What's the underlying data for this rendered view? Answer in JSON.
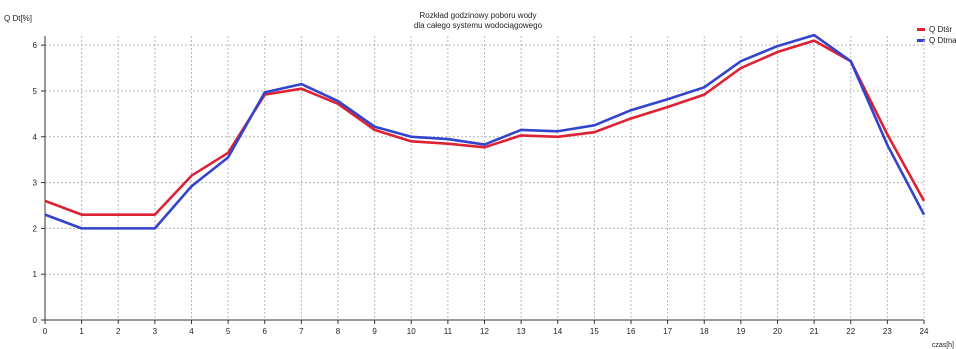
{
  "chart_data": {
    "type": "line",
    "title": "Rozkład godzinowy poboru wody",
    "subtitle": "dla całego systemu wodociągowego",
    "ylabel": "Q Dt[%]",
    "xlabel": "czas[h]",
    "x": [
      0,
      1,
      2,
      3,
      4,
      5,
      6,
      7,
      8,
      9,
      10,
      11,
      12,
      13,
      14,
      15,
      16,
      17,
      18,
      19,
      20,
      21,
      22,
      23,
      24
    ],
    "xlim": [
      0,
      24
    ],
    "ylim": [
      0,
      6.2
    ],
    "yticks": [
      0,
      1,
      2,
      3,
      4,
      5,
      6
    ],
    "grid": true,
    "legend_position": "top-right",
    "series": [
      {
        "name": "Q Dtśr",
        "color": "#dd2233",
        "values": [
          2.6,
          2.3,
          2.3,
          2.3,
          3.15,
          3.65,
          4.92,
          5.05,
          4.72,
          4.15,
          3.9,
          3.85,
          3.77,
          4.03,
          4.0,
          4.1,
          4.4,
          4.65,
          4.92,
          5.5,
          5.85,
          6.1,
          5.65,
          4.05,
          2.6
        ]
      },
      {
        "name": "Q Dtma",
        "color": "#3344cc",
        "values": [
          2.3,
          2.0,
          2.0,
          2.0,
          2.92,
          3.55,
          4.97,
          5.15,
          4.78,
          4.22,
          4.0,
          3.95,
          3.83,
          4.15,
          4.12,
          4.25,
          4.58,
          4.82,
          5.08,
          5.65,
          5.98,
          6.22,
          5.65,
          3.82,
          2.3
        ]
      }
    ]
  }
}
